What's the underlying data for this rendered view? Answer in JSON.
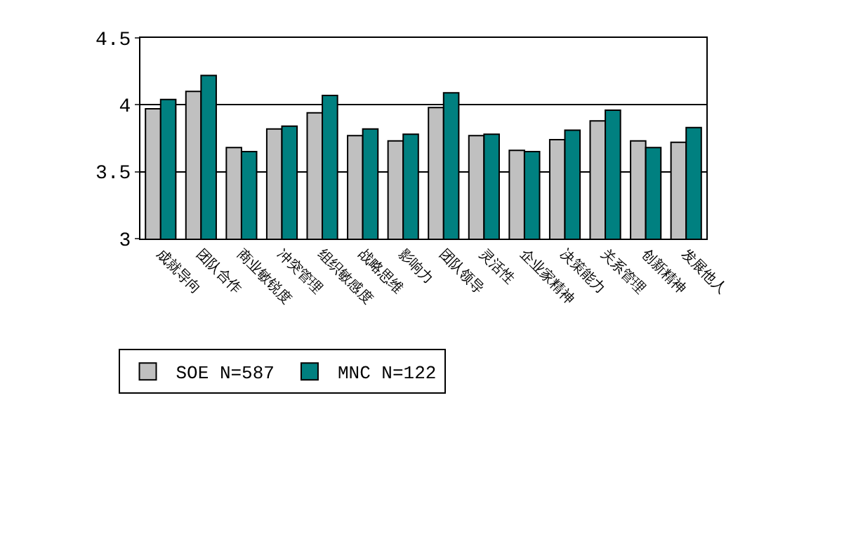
{
  "chart_data": {
    "type": "bar",
    "categories": [
      "成就导向",
      "团队合作",
      "商业敏锐度",
      "冲突管理",
      "组织敏感度",
      "战略思维",
      "影响力",
      "团队领导",
      "灵活性",
      "企业家精神",
      "决策能力",
      "关系管理",
      "创新精神",
      "发展他人"
    ],
    "series": [
      {
        "name": "SOE N=587",
        "color": "#c0c0c0",
        "values": [
          3.97,
          4.1,
          3.68,
          3.82,
          3.94,
          3.77,
          3.73,
          3.98,
          3.77,
          3.66,
          3.74,
          3.88,
          3.73,
          3.72
        ]
      },
      {
        "name": "MNC N=122",
        "color": "#008080",
        "values": [
          4.04,
          4.22,
          3.65,
          3.84,
          4.07,
          3.82,
          3.78,
          4.09,
          3.78,
          3.65,
          3.81,
          3.96,
          3.68,
          3.83
        ]
      }
    ],
    "ylim": [
      3,
      4.5
    ],
    "yticks": [
      3,
      3.5,
      4,
      4.5
    ],
    "grid": "y",
    "legend": "bottom"
  }
}
